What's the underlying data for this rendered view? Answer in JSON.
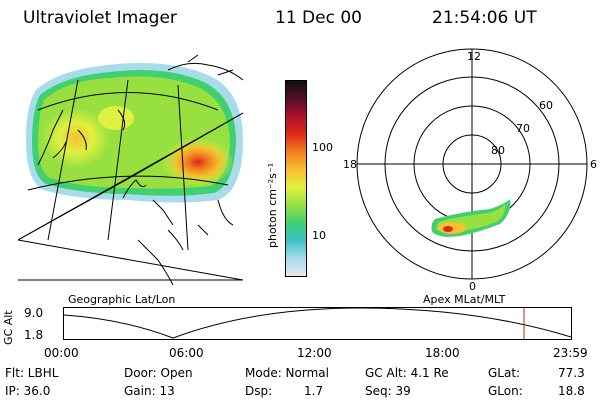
{
  "header": {
    "instrument": "Ultraviolet Imager",
    "date": "11 Dec 00",
    "time": "21:54:06 UT"
  },
  "map_panel": {
    "label": "Geographic Lat/Lon"
  },
  "polar_panel": {
    "label": "Apex MLat/MLT",
    "mlt_labels": {
      "top": "12",
      "left": "18",
      "right": "6",
      "bottom": "0"
    },
    "mlat_labels": [
      "60",
      "70",
      "80"
    ]
  },
  "colorbar": {
    "unit": "photon cm⁻²s⁻¹",
    "ticks": [
      "100",
      "10"
    ],
    "colors": [
      "#e8e8ee",
      "#a8dcea",
      "#3ec0c8",
      "#40d070",
      "#98e040",
      "#e0f040",
      "#f6c030",
      "#f08020",
      "#e02818",
      "#b0102a",
      "#50102a",
      "#101010"
    ]
  },
  "altitude_plot": {
    "ylabel": "GC Alt",
    "ymax_label": "9.0",
    "ymin_label": "1.8",
    "time_ticks": [
      "00:00",
      "06:00",
      "12:00",
      "18:00",
      "23:59"
    ],
    "marker_color": "#d02020"
  },
  "info": {
    "filter": "Flt: LBHL",
    "ip": "IP: 36.0",
    "door": "Door: Open",
    "gain": "Gain: 13",
    "mode": "Mode: Normal",
    "dsp_label": "Dsp:",
    "dsp_value": "1.7",
    "gc_alt": "GC Alt: 4.1 Re",
    "seq": "Seq: 39",
    "glat_label": "GLat:",
    "glat_value": "77.3",
    "glon_label": "GLon:",
    "glon_value": "18.8"
  }
}
